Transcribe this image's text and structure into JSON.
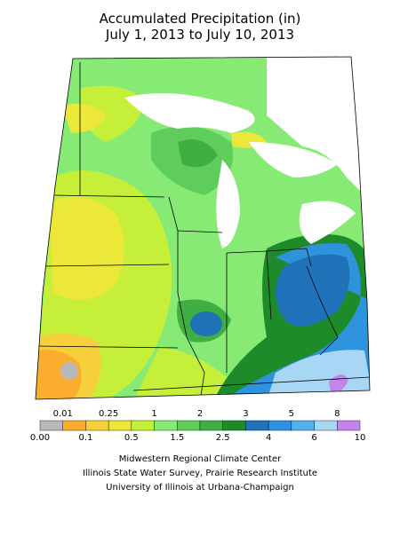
{
  "title": "Accumulated Precipitation (in)",
  "subtitle": "July 1, 2013 to July 10, 2013",
  "legend": {
    "labels": [
      "0.00",
      "0.01",
      "0.1",
      "0.25",
      "0.5",
      "1",
      "1.5",
      "2",
      "2.5",
      "3",
      "4",
      "5",
      "6",
      "8",
      "10"
    ],
    "colors": [
      "#b9b9b9",
      "#fbae2e",
      "#f7cf3c",
      "#ece83a",
      "#c6ef3a",
      "#86ea74",
      "#5fcd5c",
      "#3fae43",
      "#1e8b2a",
      "#1f72b8",
      "#2f92dc",
      "#54b0ec",
      "#a8d7f6",
      "#c584ec"
    ]
  },
  "credits": [
    "Midwestern Regional Climate Center",
    "Illinois State Water Survey, Prairie Research Institute",
    "University of Illinois at Urbana-Champaign"
  ]
}
